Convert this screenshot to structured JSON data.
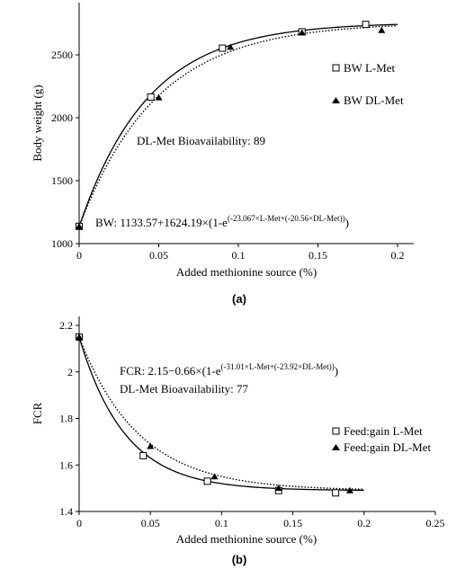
{
  "chart_data": [
    {
      "type": "scatter",
      "panel_label": "(a)",
      "xlabel": "Added methionine source (%)",
      "ylabel": "Body weight (g)",
      "xlim": [
        0,
        0.2
      ],
      "ylim": [
        1000,
        2800
      ],
      "xticks": [
        "0",
        "0.05",
        "0.1",
        "0.15",
        "0.2"
      ],
      "yticks": [
        "1000",
        "1500",
        "2000",
        "2500"
      ],
      "x_tick_values": [
        0,
        0.05,
        0.1,
        0.15,
        0.2
      ],
      "y_tick_values": [
        1000,
        1500,
        2000,
        2500
      ],
      "grid": false,
      "legend_position": "right",
      "series": [
        {
          "name": "BW L-Met",
          "marker": "open-square",
          "line": "solid",
          "x": [
            0,
            0.045,
            0.09,
            0.14,
            0.18
          ],
          "y": [
            1137,
            2165,
            2553,
            2683,
            2742
          ],
          "curve": {
            "a": 1133.57,
            "b": 1624.19,
            "c": 23.067
          }
        },
        {
          "name": "BW DL-Met",
          "marker": "filled-triangle",
          "line": "dotted",
          "x": [
            0,
            0.05,
            0.095,
            0.14,
            0.19
          ],
          "y": [
            1137,
            2160,
            2562,
            2675,
            2695
          ],
          "curve": {
            "a": 1133.57,
            "b": 1624.19,
            "c": 20.56
          }
        }
      ],
      "annotations": {
        "bioavailability": "DL-Met Bioavailability: 89",
        "equation_main": "BW: 1133.57+1624.19×(1-e",
        "equation_exponent": "(-23.067×L-Met+(-20.56×DL-Met))",
        "equation_close": ")"
      }
    },
    {
      "type": "scatter",
      "panel_label": "(b)",
      "xlabel": "Added methionine source (%)",
      "ylabel": "FCR",
      "xlim": [
        0,
        0.25
      ],
      "ylim": [
        1.4,
        2.2
      ],
      "xticks": [
        "0",
        "0.05",
        "0.1",
        "0.15",
        "0.2",
        "0.25"
      ],
      "yticks": [
        "1.4",
        "1.6",
        "1.8",
        "2",
        "2.2"
      ],
      "x_tick_values": [
        0,
        0.05,
        0.1,
        0.15,
        0.2,
        0.25
      ],
      "y_tick_values": [
        1.4,
        1.6,
        1.8,
        2.0,
        2.2
      ],
      "grid": false,
      "legend_position": "right",
      "series": [
        {
          "name": "Feed:gain L-Met",
          "marker": "open-square",
          "line": "solid",
          "x": [
            0,
            0.045,
            0.09,
            0.14,
            0.18
          ],
          "y": [
            2.15,
            1.64,
            1.53,
            1.49,
            1.48
          ],
          "curve": {
            "a": 2.15,
            "b": -0.66,
            "c": 31.01
          }
        },
        {
          "name": "Feed:gain DL-Met",
          "marker": "filled-triangle",
          "line": "dotted",
          "x": [
            0,
            0.05,
            0.095,
            0.14,
            0.19
          ],
          "y": [
            2.15,
            1.68,
            1.55,
            1.5,
            1.49
          ],
          "curve": {
            "a": 2.15,
            "b": -0.66,
            "c": 23.92
          }
        }
      ],
      "annotations": {
        "equation_main": "FCR: 2.15−0.66×(1-e",
        "equation_exponent": "(-31.01×L-Met+(-23.92×DL-Met))",
        "equation_close": ")",
        "bioavailability": "DL-Met Bioavailability: 77"
      }
    }
  ]
}
